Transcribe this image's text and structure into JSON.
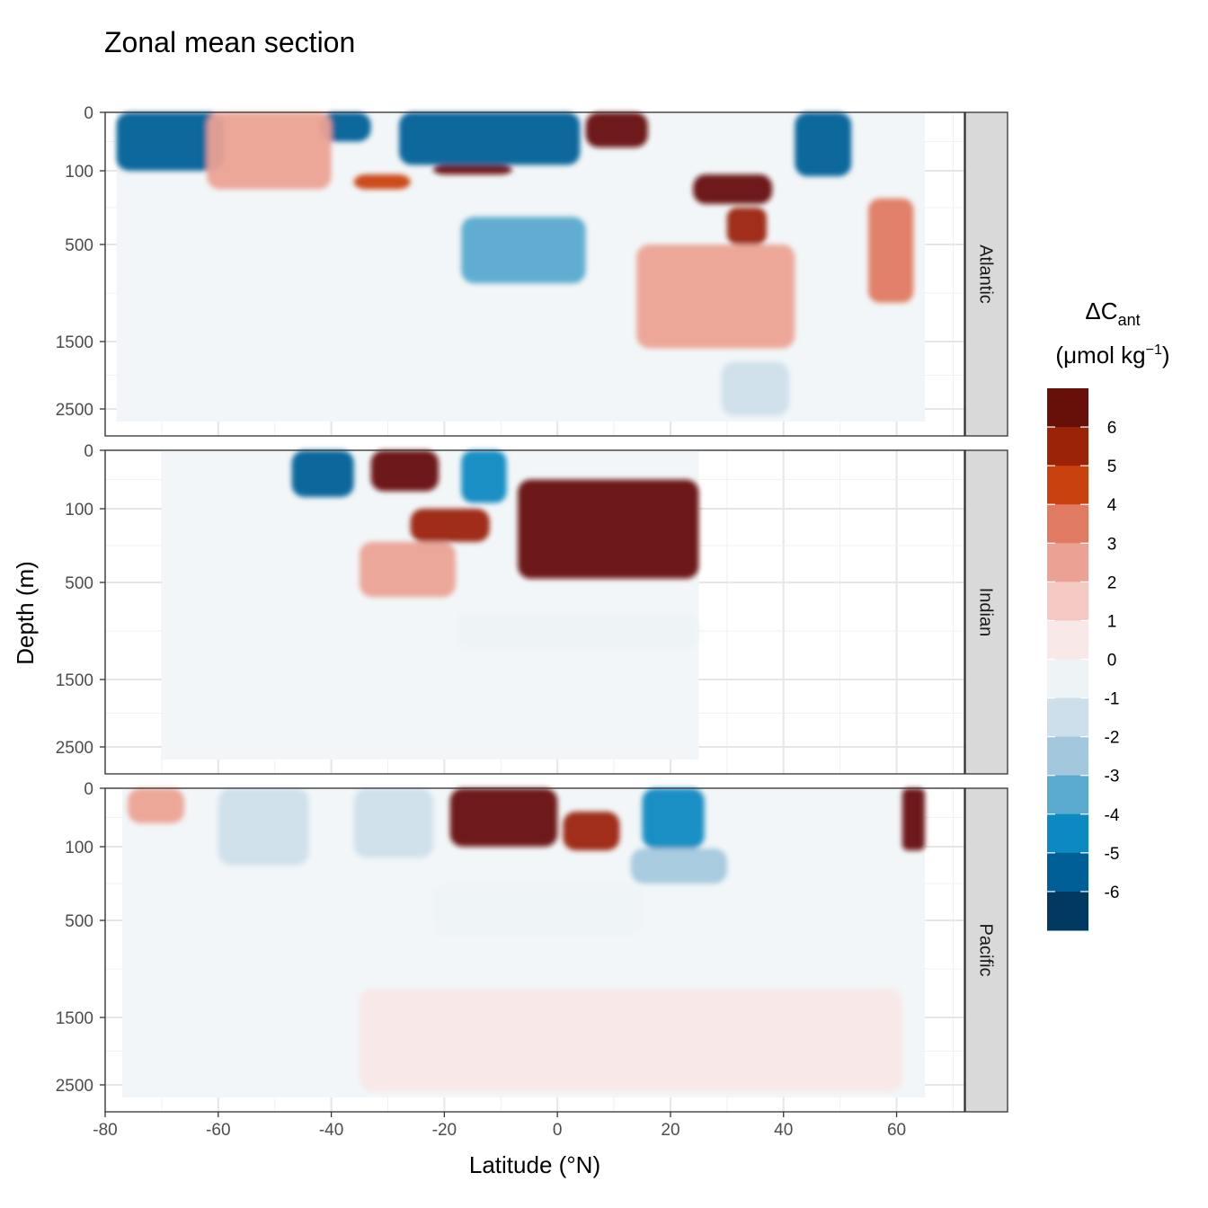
{
  "chart_data": {
    "type": "contour",
    "title": "Zonal mean section",
    "xlabel": "Latitude (°N)",
    "ylabel": "Depth (m)",
    "xlim": [
      -80,
      72
    ],
    "x_ticks": [
      -80,
      -60,
      -40,
      -20,
      0,
      20,
      40,
      60
    ],
    "y_ticks": [
      0,
      100,
      500,
      1500,
      2500
    ],
    "y_scale": "nonlinear (expanded upper ocean)",
    "grid": true,
    "legend": {
      "title_main": "ΔC",
      "title_sub": "ant",
      "unit_prefix": "(μmol kg",
      "unit_sup": "−1",
      "unit_suffix": ")",
      "placement": "right",
      "breaks": [
        "6",
        "5",
        "4",
        "3",
        "2",
        "1",
        "0",
        "-1",
        "-2",
        "-3",
        "-4",
        "-5",
        "-6"
      ],
      "colors": [
        "#67100a",
        "#9b2308",
        "#c9410f",
        "#e07a62",
        "#eba294",
        "#f4c9c4",
        "#f8e8e7",
        "#eef3f6",
        "#cddfeb",
        "#a3c8de",
        "#5aa9cf",
        "#0b89c1",
        "#005f97",
        "#003a63"
      ]
    },
    "panels": [
      {
        "name": "Atlantic",
        "lat_range": [
          -78,
          65
        ],
        "features": [
          {
            "lat": [
              -78,
              -59
            ],
            "depth": [
              0,
              100
            ],
            "value": -6
          },
          {
            "lat": [
              -42,
              -33
            ],
            "depth": [
              0,
              50
            ],
            "value": -6
          },
          {
            "lat": [
              -28,
              4
            ],
            "depth": [
              0,
              90
            ],
            "value": -6
          },
          {
            "lat": [
              5,
              16
            ],
            "depth": [
              0,
              60
            ],
            "value": 6
          },
          {
            "lat": [
              -22,
              -8
            ],
            "depth": [
              90,
              120
            ],
            "value": 6
          },
          {
            "lat": [
              -36,
              -26
            ],
            "depth": [
              120,
              200
            ],
            "value": 4
          },
          {
            "lat": [
              -17,
              5
            ],
            "depth": [
              350,
              900
            ],
            "value": -4
          },
          {
            "lat": [
              24,
              38
            ],
            "depth": [
              120,
              280
            ],
            "value": 6
          },
          {
            "lat": [
              30,
              37
            ],
            "depth": [
              300,
              500
            ],
            "value": 5
          },
          {
            "lat": [
              42,
              52
            ],
            "depth": [
              0,
              130
            ],
            "value": -6
          },
          {
            "lat": [
              55,
              63
            ],
            "depth": [
              250,
              1100
            ],
            "value": 3
          },
          {
            "lat": [
              -62,
              -40
            ],
            "depth": [
              0,
              200
            ],
            "value": 2
          },
          {
            "lat": [
              14,
              42
            ],
            "depth": [
              500,
              1600
            ],
            "value": 2
          },
          {
            "lat": [
              29,
              41
            ],
            "depth": [
              1800,
              2600
            ],
            "value": -2
          }
        ]
      },
      {
        "name": "Indian",
        "lat_range": [
          -70,
          25
        ],
        "features": [
          {
            "lat": [
              -47,
              -36
            ],
            "depth": [
              0,
              80
            ],
            "value": -6
          },
          {
            "lat": [
              -33,
              -21
            ],
            "depth": [
              0,
              70
            ],
            "value": 6
          },
          {
            "lat": [
              -17,
              -9
            ],
            "depth": [
              0,
              90
            ],
            "value": -5
          },
          {
            "lat": [
              -7,
              25
            ],
            "depth": [
              50,
              480
            ],
            "value": 6
          },
          {
            "lat": [
              -26,
              -12
            ],
            "depth": [
              100,
              280
            ],
            "value": 5
          },
          {
            "lat": [
              -35,
              -18
            ],
            "depth": [
              280,
              650
            ],
            "value": 2
          },
          {
            "lat": [
              -18,
              25
            ],
            "depth": [
              800,
              1200
            ],
            "value": -1
          }
        ]
      },
      {
        "name": "Pacific",
        "lat_range": [
          -77,
          65
        ],
        "features": [
          {
            "lat": [
              -76,
              -66
            ],
            "depth": [
              0,
              60
            ],
            "value": 2
          },
          {
            "lat": [
              -60,
              -44
            ],
            "depth": [
              0,
              200
            ],
            "value": -2
          },
          {
            "lat": [
              -36,
              -22
            ],
            "depth": [
              0,
              160
            ],
            "value": -2
          },
          {
            "lat": [
              -19,
              0
            ],
            "depth": [
              0,
              100
            ],
            "value": 6
          },
          {
            "lat": [
              1,
              11
            ],
            "depth": [
              40,
              120
            ],
            "value": 5
          },
          {
            "lat": [
              15,
              26
            ],
            "depth": [
              0,
              110
            ],
            "value": -5
          },
          {
            "lat": [
              13,
              30
            ],
            "depth": [
              110,
              300
            ],
            "value": -3
          },
          {
            "lat": [
              61,
              65
            ],
            "depth": [
              0,
              120
            ],
            "value": 6
          },
          {
            "lat": [
              -22,
              15
            ],
            "depth": [
              300,
              650
            ],
            "value": -1
          },
          {
            "lat": [
              -35,
              61
            ],
            "depth": [
              1200,
              2600
            ],
            "value": 0.5
          }
        ]
      }
    ]
  }
}
